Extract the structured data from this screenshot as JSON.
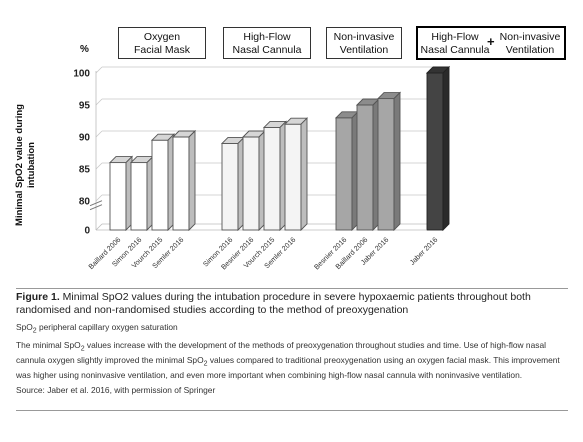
{
  "chart_data": {
    "type": "bar",
    "y_unit": "%",
    "ylabel": "Minimal SpO2 value during intubation",
    "ylim": [
      0,
      100
    ],
    "yticks": [
      0,
      80,
      85,
      90,
      95,
      100
    ],
    "axis_break": true,
    "grid": true,
    "groups": [
      {
        "name": "Oxygen Facial Mask",
        "lines": [
          "Oxygen",
          "Facial Mask"
        ],
        "color": "#ffffff"
      },
      {
        "name": "High-Flow Nasal Cannula",
        "lines": [
          "High-Flow",
          "Nasal Cannula"
        ],
        "color": "#f4f4f4"
      },
      {
        "name": "Non-invasive Ventilation",
        "lines": [
          "Non-invasive",
          "Ventilation"
        ],
        "color": "#a6a6a6"
      },
      {
        "name": "High-Flow Nasal Cannula + Non-invasive Ventilation",
        "lines_a": [
          "High-Flow",
          "Nasal Cannula"
        ],
        "plus": "+",
        "lines_b": [
          "Non-invasive",
          "Ventilation"
        ],
        "color": "#444444"
      }
    ],
    "categories": [
      "Baillard 2006",
      "Simon 2016",
      "Vourch 2015",
      "Semler 2016",
      "Simon 2016",
      "Besnier 2016",
      "Vourch 2015",
      "Semler 2016",
      "Besnier 2016",
      "Baillard 2006",
      "Jaber 2016",
      "Jaber 2016"
    ],
    "group_index": [
      0,
      0,
      0,
      0,
      1,
      1,
      1,
      1,
      2,
      2,
      2,
      3
    ],
    "values": [
      86,
      86,
      89.5,
      90,
      89,
      90,
      91.5,
      92,
      93,
      95,
      96,
      100
    ]
  },
  "caption": {
    "figure_label": "Figure 1.",
    "figure_text": " Minimal SpO2 values during the intubation procedure in severe hypoxaemic patients throughout both randomised and non-randomised studies according to the method of preoxygenation",
    "abbrev_a": "SpO",
    "abbrev_sub": "2",
    "abbrev_b": " peripheral capillary oxygen saturation",
    "note_1a": "The minimal SpO",
    "note_1sub": "2",
    "note_1b": " values increase with the development of the methods of preoxygenation throughout studies and time. Use of high-flow nasal cannula oxygen slightly improved the minimal SpO",
    "note_2sub": "2",
    "note_2b": " values compared to traditional preoxygenation using an oxygen facial mask. This improvement was higher using noninvasive ventilation, and even more important when combining high-flow nasal cannula with noninvasive ventilation.",
    "source": "Source: Jaber et al. 2016, with permission of Springer"
  }
}
